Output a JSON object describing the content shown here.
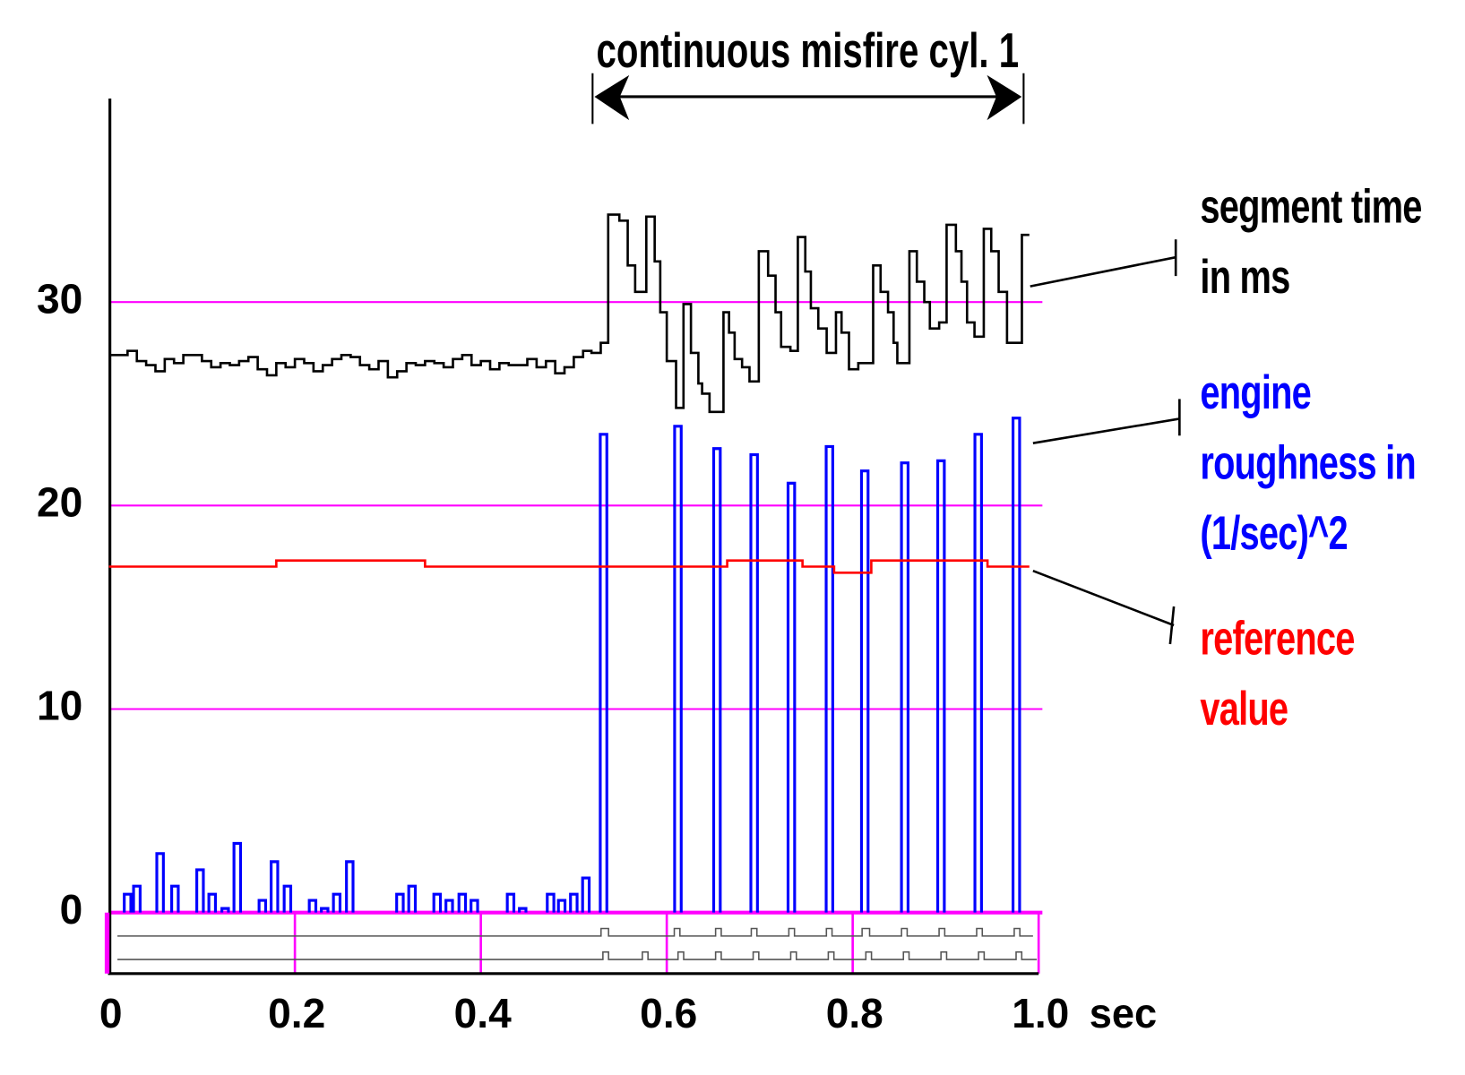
{
  "chart_data": {
    "type": "line",
    "annotation": "continuous misfire cyl. 1",
    "x_label": "sec",
    "xlim": [
      0,
      1
    ],
    "xticks": [
      0,
      0.2,
      0.4,
      0.6,
      0.8,
      {
        "value": 1,
        "label": "1.0"
      }
    ],
    "ylim": [
      -3,
      40
    ],
    "yticks": [
      0,
      10,
      20,
      30
    ],
    "grid": true,
    "grid_color": "#ff00ff",
    "series": [
      {
        "name": "segment time in ms",
        "color": "#000000",
        "style": "step",
        "x": [
          0,
          0.01,
          0.02,
          0.03,
          0.04,
          0.05,
          0.06,
          0.07,
          0.08,
          0.09,
          0.1,
          0.11,
          0.12,
          0.13,
          0.14,
          0.15,
          0.16,
          0.17,
          0.18,
          0.19,
          0.2,
          0.21,
          0.22,
          0.23,
          0.24,
          0.25,
          0.26,
          0.27,
          0.28,
          0.29,
          0.3,
          0.31,
          0.32,
          0.33,
          0.34,
          0.35,
          0.36,
          0.37,
          0.38,
          0.39,
          0.4,
          0.41,
          0.42,
          0.43,
          0.44,
          0.45,
          0.46,
          0.47,
          0.48,
          0.49,
          0.5,
          0.51,
          0.519,
          0.529,
          0.537,
          0.549,
          0.558,
          0.566,
          0.578,
          0.587,
          0.593,
          0.6,
          0.61,
          0.618,
          0.626,
          0.634,
          0.638,
          0.646,
          0.661,
          0.667,
          0.673,
          0.681,
          0.689,
          0.699,
          0.709,
          0.717,
          0.723,
          0.733,
          0.741,
          0.749,
          0.755,
          0.763,
          0.772,
          0.782,
          0.788,
          0.796,
          0.806,
          0.822,
          0.83,
          0.838,
          0.844,
          0.848,
          0.861,
          0.869,
          0.877,
          0.883,
          0.893,
          0.901,
          0.911,
          0.917,
          0.923,
          0.931,
          0.941,
          0.949,
          0.957,
          0.966,
          0.973,
          0.982,
          0.99
        ],
        "values": [
          27.4,
          27.4,
          27.6,
          27.1,
          26.9,
          26.6,
          27.2,
          27.0,
          27.4,
          27.4,
          27.1,
          26.8,
          27.0,
          26.9,
          27.1,
          27.3,
          26.7,
          26.4,
          27.0,
          26.8,
          27.2,
          27.0,
          26.6,
          26.9,
          27.2,
          27.4,
          27.3,
          26.9,
          26.7,
          27.1,
          26.3,
          26.6,
          27.0,
          26.9,
          27.1,
          27.0,
          26.8,
          27.2,
          27.4,
          26.9,
          27.1,
          26.7,
          27.0,
          26.9,
          26.9,
          27.2,
          26.8,
          27.1,
          26.5,
          26.8,
          27.3,
          27.6,
          27.5,
          28.0,
          34.3,
          34.0,
          31.8,
          30.5,
          34.2,
          32.0,
          29.5,
          27.1,
          24.8,
          29.9,
          27.5,
          26.0,
          25.5,
          24.6,
          29.5,
          28.5,
          27.2,
          26.8,
          26.1,
          32.5,
          31.3,
          29.5,
          27.8,
          27.6,
          33.2,
          31.5,
          29.7,
          28.7,
          27.5,
          29.5,
          28.5,
          26.7,
          27.0,
          31.8,
          30.5,
          29.5,
          28.0,
          27.0,
          32.5,
          31.0,
          30.0,
          28.7,
          29.0,
          33.8,
          32.5,
          31.0,
          29.0,
          28.3,
          33.6,
          32.5,
          30.5,
          28.0,
          28.0,
          33.3,
          33.3
        ]
      },
      {
        "name": "engine roughness in (1/sec)^2",
        "color": "#0000ff",
        "style": "spike",
        "x": [
          0.02,
          0.03,
          0.055,
          0.071,
          0.098,
          0.111,
          0.125,
          0.138,
          0.165,
          0.178,
          0.192,
          0.219,
          0.232,
          0.245,
          0.259,
          0.313,
          0.326,
          0.353,
          0.366,
          0.38,
          0.393,
          0.432,
          0.445,
          0.475,
          0.487,
          0.5,
          0.513,
          0.532,
          0.612,
          0.654,
          0.694,
          0.734,
          0.775,
          0.813,
          0.856,
          0.895,
          0.935,
          0.976
        ],
        "values": [
          0.9,
          1.3,
          2.9,
          1.3,
          2.1,
          0.9,
          0.2,
          3.4,
          0.6,
          2.5,
          1.3,
          0.6,
          0.2,
          0.9,
          2.5,
          0.9,
          1.3,
          0.9,
          0.6,
          0.9,
          0.6,
          0.9,
          0.2,
          0.9,
          0.6,
          0.9,
          1.7,
          23.5,
          23.9,
          22.8,
          22.5,
          21.1,
          22.9,
          21.7,
          22.1,
          22.2,
          23.5,
          24.3
        ]
      },
      {
        "name": "reference value",
        "color": "#ff0000",
        "style": "step",
        "x": [
          0,
          0.18,
          0.34,
          0.665,
          0.746,
          0.78,
          0.82,
          0.945,
          0.99
        ],
        "values": [
          17,
          17.3,
          17,
          17.3,
          17,
          16.7,
          17.3,
          17,
          17
        ]
      }
    ]
  }
}
